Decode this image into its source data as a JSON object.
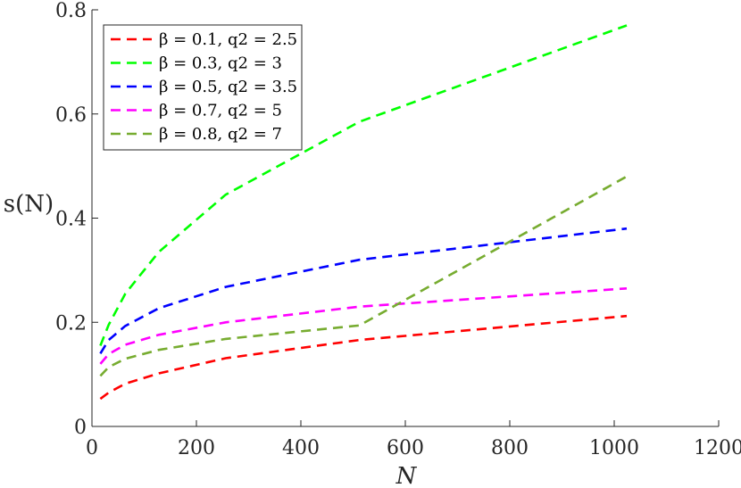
{
  "chart_data": {
    "type": "line",
    "xlabel": "N",
    "ylabel": "s(N)",
    "xlim": [
      0,
      1200
    ],
    "ylim": [
      0,
      0.8
    ],
    "x_ticks": [
      0,
      200,
      400,
      600,
      800,
      1000,
      1200
    ],
    "x_tick_labels": [
      "0",
      "200",
      "400",
      "600",
      "800",
      "1000",
      "1200"
    ],
    "y_ticks": [
      0,
      0.2,
      0.4,
      0.6,
      0.8
    ],
    "y_tick_labels": [
      "0",
      "0.2",
      "0.4",
      "0.6",
      "0.8"
    ],
    "grid": false,
    "legend_position": "top-left",
    "line_style": "dashed",
    "x": [
      16,
      32,
      64,
      128,
      256,
      512,
      1024
    ],
    "series": [
      {
        "name": "β = 0.1, q2 = 2.5",
        "color": "#ff0000",
        "values": [
          0.053,
          0.065,
          0.082,
          0.102,
          0.131,
          0.166,
          0.212
        ]
      },
      {
        "name": "β = 0.3, q2 = 3",
        "color": "#00ff00",
        "values": [
          0.155,
          0.195,
          0.255,
          0.335,
          0.445,
          0.585,
          0.77
        ]
      },
      {
        "name": "β = 0.5, q2 = 3.5",
        "color": "#0000ff",
        "values": [
          0.14,
          0.166,
          0.193,
          0.227,
          0.268,
          0.32,
          0.38
        ]
      },
      {
        "name": "β = 0.7, q2 = 5",
        "color": "#ff00ff",
        "values": [
          0.12,
          0.139,
          0.157,
          0.176,
          0.2,
          0.23,
          0.265
        ]
      },
      {
        "name": "β = 0.8, q2 = 7",
        "color": "#77ac30",
        "values": [
          0.097,
          0.114,
          0.13,
          0.147,
          0.168,
          0.194,
          0.48
        ]
      }
    ]
  }
}
